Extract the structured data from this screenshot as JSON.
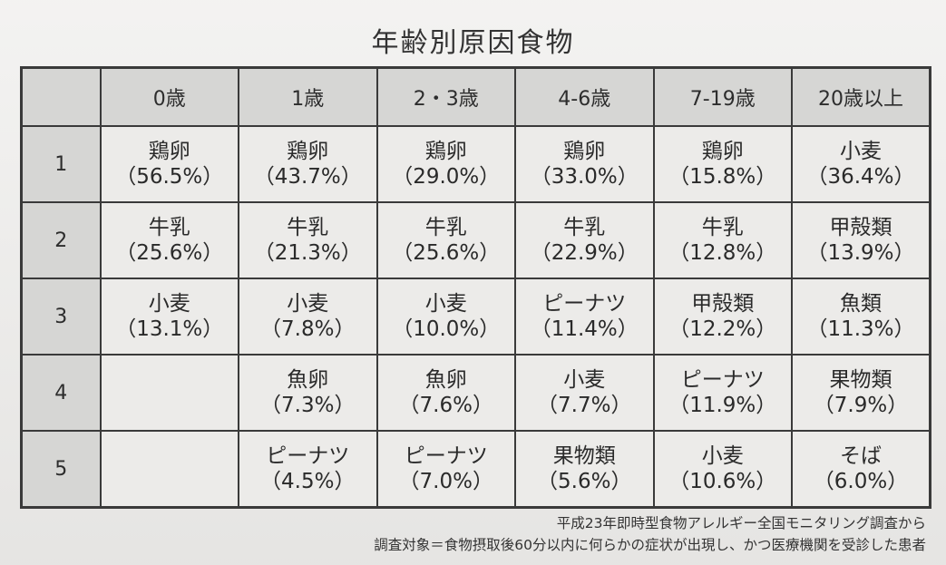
{
  "title": "年齢別原因食物",
  "header": {
    "corner": "",
    "columns": [
      "0歳",
      "1歳",
      "2・3歳",
      "4-6歳",
      "7-19歳",
      "20歳以上"
    ]
  },
  "rows": [
    {
      "rank": "1",
      "cells": [
        {
          "food": "鶏卵",
          "pct": "（56.5%）"
        },
        {
          "food": "鶏卵",
          "pct": "（43.7%）"
        },
        {
          "food": "鶏卵",
          "pct": "（29.0%）"
        },
        {
          "food": "鶏卵",
          "pct": "（33.0%）"
        },
        {
          "food": "鶏卵",
          "pct": "（15.8%）"
        },
        {
          "food": "小麦",
          "pct": "（36.4%）"
        }
      ]
    },
    {
      "rank": "2",
      "cells": [
        {
          "food": "牛乳",
          "pct": "（25.6%）"
        },
        {
          "food": "牛乳",
          "pct": "（21.3%）"
        },
        {
          "food": "牛乳",
          "pct": "（25.6%）"
        },
        {
          "food": "牛乳",
          "pct": "（22.9%）"
        },
        {
          "food": "牛乳",
          "pct": "（12.8%）"
        },
        {
          "food": "甲殻類",
          "pct": "（13.9%）"
        }
      ]
    },
    {
      "rank": "3",
      "cells": [
        {
          "food": "小麦",
          "pct": "（13.1%）"
        },
        {
          "food": "小麦",
          "pct": "（7.8%）"
        },
        {
          "food": "小麦",
          "pct": "（10.0%）"
        },
        {
          "food": "ピーナツ",
          "pct": "（11.4%）"
        },
        {
          "food": "甲殻類",
          "pct": "（12.2%）"
        },
        {
          "food": "魚類",
          "pct": "（11.3%）"
        }
      ]
    },
    {
      "rank": "4",
      "cells": [
        {
          "food": "",
          "pct": ""
        },
        {
          "food": "魚卵",
          "pct": "（7.3%）"
        },
        {
          "food": "魚卵",
          "pct": "（7.6%）"
        },
        {
          "food": "小麦",
          "pct": "（7.7%）"
        },
        {
          "food": "ピーナツ",
          "pct": "（11.9%）"
        },
        {
          "food": "果物類",
          "pct": "（7.9%）"
        }
      ]
    },
    {
      "rank": "5",
      "cells": [
        {
          "food": "",
          "pct": ""
        },
        {
          "food": "ピーナツ",
          "pct": "（4.5%）"
        },
        {
          "food": "ピーナツ",
          "pct": "（7.0%）"
        },
        {
          "food": "果物類",
          "pct": "（5.6%）"
        },
        {
          "food": "小麦",
          "pct": "（10.6%）"
        },
        {
          "food": "そば",
          "pct": "（6.0%）"
        }
      ]
    }
  ],
  "footer": {
    "source": "平成23年即時型食物アレルギー全国モニタリング調査から",
    "target": "調査対象＝食物摂取後60分以内に何らかの症状が出現し、かつ医療機関を受診した患者"
  }
}
